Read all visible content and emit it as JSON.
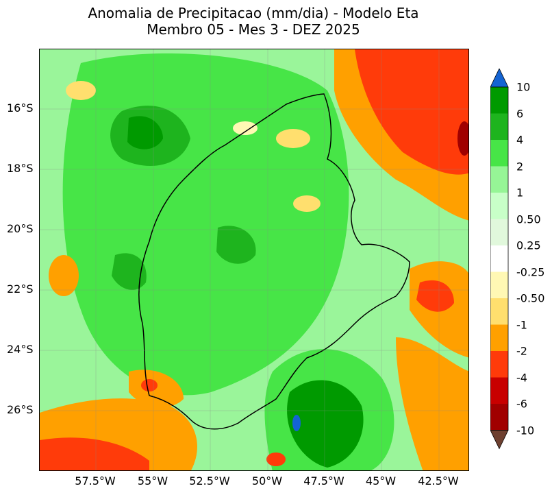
{
  "title": {
    "line1": "Anomalia de Precipitacao (mm/dia) - Modelo Eta",
    "line2": "Membro 05 - Mes 3 - DEZ 2025"
  },
  "map": {
    "variable": "precipitation anomaly",
    "units": "mm/dia",
    "lat_ticks": [
      "16°S",
      "18°S",
      "20°S",
      "22°S",
      "24°S",
      "26°S"
    ],
    "lon_ticks": [
      "57.5°W",
      "55°W",
      "52.5°W",
      "50°W",
      "47.5°W",
      "45°W",
      "42.5°W"
    ],
    "regions": [
      {
        "name": "strong positive core north-west",
        "color": "#009a00"
      },
      {
        "name": "widespread positive anomaly interior",
        "color": "#47e547"
      },
      {
        "name": "strong positive south-east coast",
        "color": "#009a00"
      },
      {
        "name": "negative anomaly north-east",
        "color": "#ff3b0a"
      },
      {
        "name": "negative anomaly south-west",
        "color": "#ffa000"
      },
      {
        "name": "negative anomaly south-east",
        "color": "#ffa000"
      },
      {
        "name": "extreme positive coastal spot",
        "color": "#1464d2"
      }
    ]
  },
  "colorbar": {
    "labels": [
      "10",
      "6",
      "4",
      "2",
      "1",
      "0.50",
      "0.25",
      "-0.25",
      "-0.50",
      "-1",
      "-2",
      "-4",
      "-6",
      "-10"
    ],
    "segments": [
      {
        "color": "#a00000"
      },
      {
        "color": "#c80000"
      },
      {
        "color": "#ff3b0a"
      },
      {
        "color": "#ffa000"
      },
      {
        "color": "#ffdf6e"
      },
      {
        "color": "#fff8b4"
      },
      {
        "color": "#ffffff"
      },
      {
        "color": "#e1f8dc"
      },
      {
        "color": "#c8ffc8"
      },
      {
        "color": "#96f596"
      },
      {
        "color": "#47e547"
      },
      {
        "color": "#1eb41e"
      },
      {
        "color": "#009a00"
      }
    ],
    "over_color": "#1464d2",
    "under_color": "#6e4030"
  }
}
